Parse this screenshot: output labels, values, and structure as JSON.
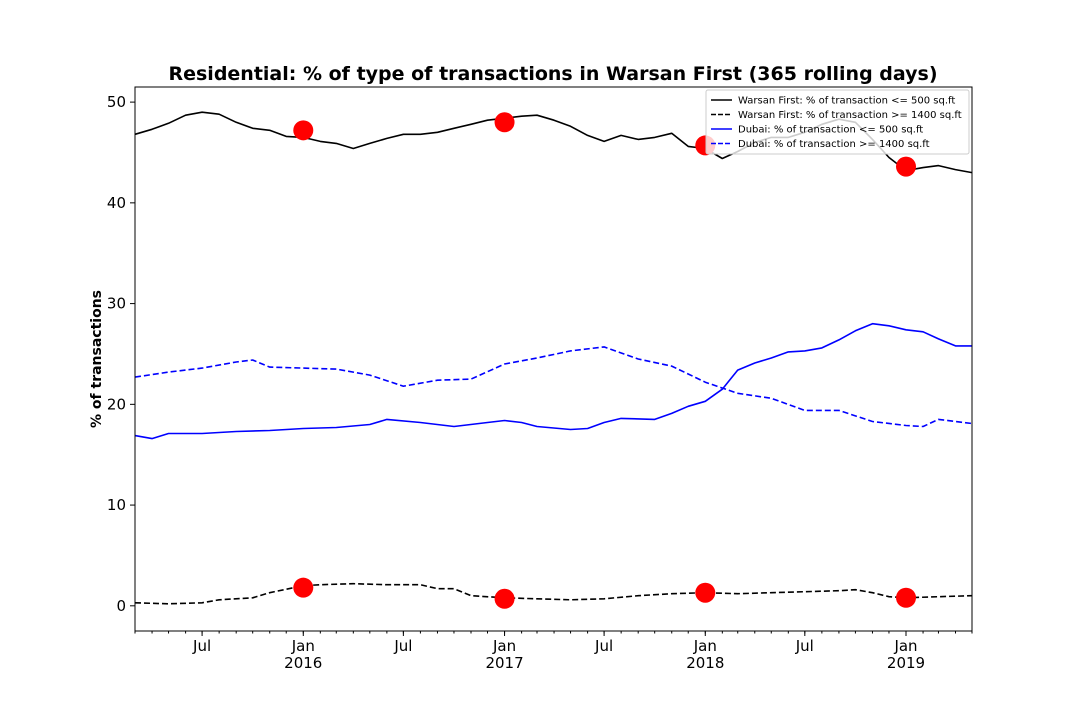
{
  "chart_data": {
    "type": "line",
    "title": "Residential: % of type of transactions in Warsan First (365 rolling days)",
    "xlabel": "",
    "ylabel": "% of transactions",
    "ylim": [
      -2.5,
      51.5
    ],
    "xlim": [
      "2015-03-01",
      "2019-05-01"
    ],
    "yticks": [
      0,
      10,
      20,
      30,
      40,
      50
    ],
    "xtick_labels": [
      {
        "date": "2015-07-01",
        "label": "Jul",
        "year": ""
      },
      {
        "date": "2016-01-01",
        "label": "Jan",
        "year": "2016"
      },
      {
        "date": "2016-07-01",
        "label": "Jul",
        "year": ""
      },
      {
        "date": "2017-01-01",
        "label": "Jan",
        "year": "2017"
      },
      {
        "date": "2017-07-01",
        "label": "Jul",
        "year": ""
      },
      {
        "date": "2018-01-01",
        "label": "Jan",
        "year": "2018"
      },
      {
        "date": "2018-07-01",
        "label": "Jul",
        "year": ""
      },
      {
        "date": "2019-01-01",
        "label": "Jan",
        "year": "2019"
      }
    ],
    "grid": false,
    "legend_position": "top-right",
    "series": [
      {
        "name": "Warsan First: % of transaction <= 500 sq.ft",
        "color": "#000000",
        "style": "solid",
        "points": [
          [
            "2015-03-01",
            46.8
          ],
          [
            "2015-04-01",
            47.3
          ],
          [
            "2015-05-01",
            47.9
          ],
          [
            "2015-06-01",
            48.7
          ],
          [
            "2015-07-01",
            49.0
          ],
          [
            "2015-08-01",
            48.8
          ],
          [
            "2015-09-01",
            48.0
          ],
          [
            "2015-10-01",
            47.4
          ],
          [
            "2015-11-01",
            47.2
          ],
          [
            "2015-12-01",
            46.6
          ],
          [
            "2016-01-01",
            46.5
          ],
          [
            "2016-02-01",
            46.1
          ],
          [
            "2016-03-01",
            45.9
          ],
          [
            "2016-04-01",
            45.4
          ],
          [
            "2016-05-01",
            45.9
          ],
          [
            "2016-06-01",
            46.4
          ],
          [
            "2016-07-01",
            46.8
          ],
          [
            "2016-08-01",
            46.8
          ],
          [
            "2016-09-01",
            47.0
          ],
          [
            "2016-10-01",
            47.4
          ],
          [
            "2016-11-01",
            47.8
          ],
          [
            "2016-12-01",
            48.2
          ],
          [
            "2017-01-01",
            48.4
          ],
          [
            "2017-02-01",
            48.6
          ],
          [
            "2017-03-01",
            48.7
          ],
          [
            "2017-04-01",
            48.2
          ],
          [
            "2017-05-01",
            47.6
          ],
          [
            "2017-06-01",
            46.7
          ],
          [
            "2017-07-01",
            46.1
          ],
          [
            "2017-08-01",
            46.7
          ],
          [
            "2017-09-01",
            46.3
          ],
          [
            "2017-10-01",
            46.5
          ],
          [
            "2017-11-01",
            46.9
          ],
          [
            "2017-12-01",
            45.6
          ],
          [
            "2018-01-01",
            45.4
          ],
          [
            "2018-02-01",
            44.4
          ],
          [
            "2018-03-01",
            45.1
          ],
          [
            "2018-04-01",
            46.0
          ],
          [
            "2018-05-01",
            46.5
          ],
          [
            "2018-06-01",
            46.5
          ],
          [
            "2018-07-01",
            47.0
          ],
          [
            "2018-08-01",
            47.8
          ],
          [
            "2018-09-01",
            48.3
          ],
          [
            "2018-10-01",
            48.0
          ],
          [
            "2018-11-01",
            46.3
          ],
          [
            "2018-12-01",
            44.5
          ],
          [
            "2019-01-01",
            43.2
          ],
          [
            "2019-02-01",
            43.5
          ],
          [
            "2019-03-01",
            43.7
          ],
          [
            "2019-04-01",
            43.3
          ],
          [
            "2019-05-01",
            43.0
          ]
        ]
      },
      {
        "name": "Warsan First: % of transaction >= 1400 sq.ft",
        "color": "#000000",
        "style": "dashed",
        "points": [
          [
            "2015-03-01",
            0.3
          ],
          [
            "2015-05-01",
            0.2
          ],
          [
            "2015-07-01",
            0.3
          ],
          [
            "2015-08-01",
            0.6
          ],
          [
            "2015-10-01",
            0.8
          ],
          [
            "2015-11-01",
            1.3
          ],
          [
            "2016-01-01",
            2.0
          ],
          [
            "2016-02-01",
            2.1
          ],
          [
            "2016-04-01",
            2.2
          ],
          [
            "2016-06-01",
            2.1
          ],
          [
            "2016-08-01",
            2.1
          ],
          [
            "2016-09-01",
            1.7
          ],
          [
            "2016-10-01",
            1.7
          ],
          [
            "2016-11-01",
            1.0
          ],
          [
            "2017-01-01",
            0.8
          ],
          [
            "2017-03-01",
            0.7
          ],
          [
            "2017-05-01",
            0.6
          ],
          [
            "2017-07-01",
            0.7
          ],
          [
            "2017-09-01",
            1.0
          ],
          [
            "2017-11-01",
            1.2
          ],
          [
            "2018-01-01",
            1.3
          ],
          [
            "2018-03-01",
            1.2
          ],
          [
            "2018-05-01",
            1.3
          ],
          [
            "2018-07-01",
            1.4
          ],
          [
            "2018-09-01",
            1.5
          ],
          [
            "2018-10-01",
            1.6
          ],
          [
            "2018-11-01",
            1.3
          ],
          [
            "2018-12-01",
            0.9
          ],
          [
            "2019-01-01",
            0.8
          ],
          [
            "2019-03-01",
            0.9
          ],
          [
            "2019-05-01",
            1.0
          ]
        ]
      },
      {
        "name": "Dubai: % of transaction <= 500 sq.ft",
        "color": "#0000ff",
        "style": "solid",
        "points": [
          [
            "2015-03-01",
            16.9
          ],
          [
            "2015-04-01",
            16.6
          ],
          [
            "2015-05-01",
            17.1
          ],
          [
            "2015-07-01",
            17.1
          ],
          [
            "2015-09-01",
            17.3
          ],
          [
            "2015-11-01",
            17.4
          ],
          [
            "2016-01-01",
            17.6
          ],
          [
            "2016-03-01",
            17.7
          ],
          [
            "2016-05-01",
            18.0
          ],
          [
            "2016-06-01",
            18.5
          ],
          [
            "2016-08-01",
            18.2
          ],
          [
            "2016-10-01",
            17.8
          ],
          [
            "2016-12-01",
            18.2
          ],
          [
            "2017-01-01",
            18.4
          ],
          [
            "2017-02-01",
            18.2
          ],
          [
            "2017-03-01",
            17.8
          ],
          [
            "2017-05-01",
            17.5
          ],
          [
            "2017-06-01",
            17.6
          ],
          [
            "2017-07-01",
            18.2
          ],
          [
            "2017-08-01",
            18.6
          ],
          [
            "2017-10-01",
            18.5
          ],
          [
            "2017-11-01",
            19.1
          ],
          [
            "2017-12-01",
            19.8
          ],
          [
            "2018-01-01",
            20.3
          ],
          [
            "2018-02-01",
            21.5
          ],
          [
            "2018-03-01",
            23.4
          ],
          [
            "2018-04-01",
            24.1
          ],
          [
            "2018-05-01",
            24.6
          ],
          [
            "2018-06-01",
            25.2
          ],
          [
            "2018-07-01",
            25.3
          ],
          [
            "2018-08-01",
            25.6
          ],
          [
            "2018-09-01",
            26.4
          ],
          [
            "2018-10-01",
            27.3
          ],
          [
            "2018-11-01",
            28.0
          ],
          [
            "2018-12-01",
            27.8
          ],
          [
            "2019-01-01",
            27.4
          ],
          [
            "2019-02-01",
            27.2
          ],
          [
            "2019-03-01",
            26.5
          ],
          [
            "2019-04-01",
            25.8
          ],
          [
            "2019-05-01",
            25.8
          ]
        ]
      },
      {
        "name": "Dubai: % of transaction >= 1400 sq.ft",
        "color": "#0000ff",
        "style": "dashed",
        "points": [
          [
            "2015-03-01",
            22.7
          ],
          [
            "2015-05-01",
            23.2
          ],
          [
            "2015-07-01",
            23.6
          ],
          [
            "2015-09-01",
            24.2
          ],
          [
            "2015-10-01",
            24.4
          ],
          [
            "2015-11-01",
            23.7
          ],
          [
            "2016-01-01",
            23.6
          ],
          [
            "2016-03-01",
            23.5
          ],
          [
            "2016-05-01",
            22.9
          ],
          [
            "2016-07-01",
            21.8
          ],
          [
            "2016-09-01",
            22.4
          ],
          [
            "2016-11-01",
            22.5
          ],
          [
            "2017-01-01",
            24.0
          ],
          [
            "2017-03-01",
            24.6
          ],
          [
            "2017-05-01",
            25.3
          ],
          [
            "2017-07-01",
            25.7
          ],
          [
            "2017-09-01",
            24.5
          ],
          [
            "2017-11-01",
            23.8
          ],
          [
            "2018-01-01",
            22.2
          ],
          [
            "2018-03-01",
            21.1
          ],
          [
            "2018-05-01",
            20.6
          ],
          [
            "2018-07-01",
            19.4
          ],
          [
            "2018-09-01",
            19.4
          ],
          [
            "2018-11-01",
            18.3
          ],
          [
            "2019-01-01",
            17.9
          ],
          [
            "2019-02-01",
            17.8
          ],
          [
            "2019-03-01",
            18.5
          ],
          [
            "2019-05-01",
            18.1
          ]
        ]
      }
    ],
    "markers": {
      "color": "#ff0000",
      "points": [
        [
          "2016-01-01",
          47.2
        ],
        [
          "2017-01-01",
          48.0
        ],
        [
          "2018-01-01",
          45.7
        ],
        [
          "2019-01-01",
          43.6
        ],
        [
          "2016-01-01",
          1.8
        ],
        [
          "2017-01-01",
          0.7
        ],
        [
          "2018-01-01",
          1.3
        ],
        [
          "2019-01-01",
          0.8
        ]
      ]
    }
  }
}
